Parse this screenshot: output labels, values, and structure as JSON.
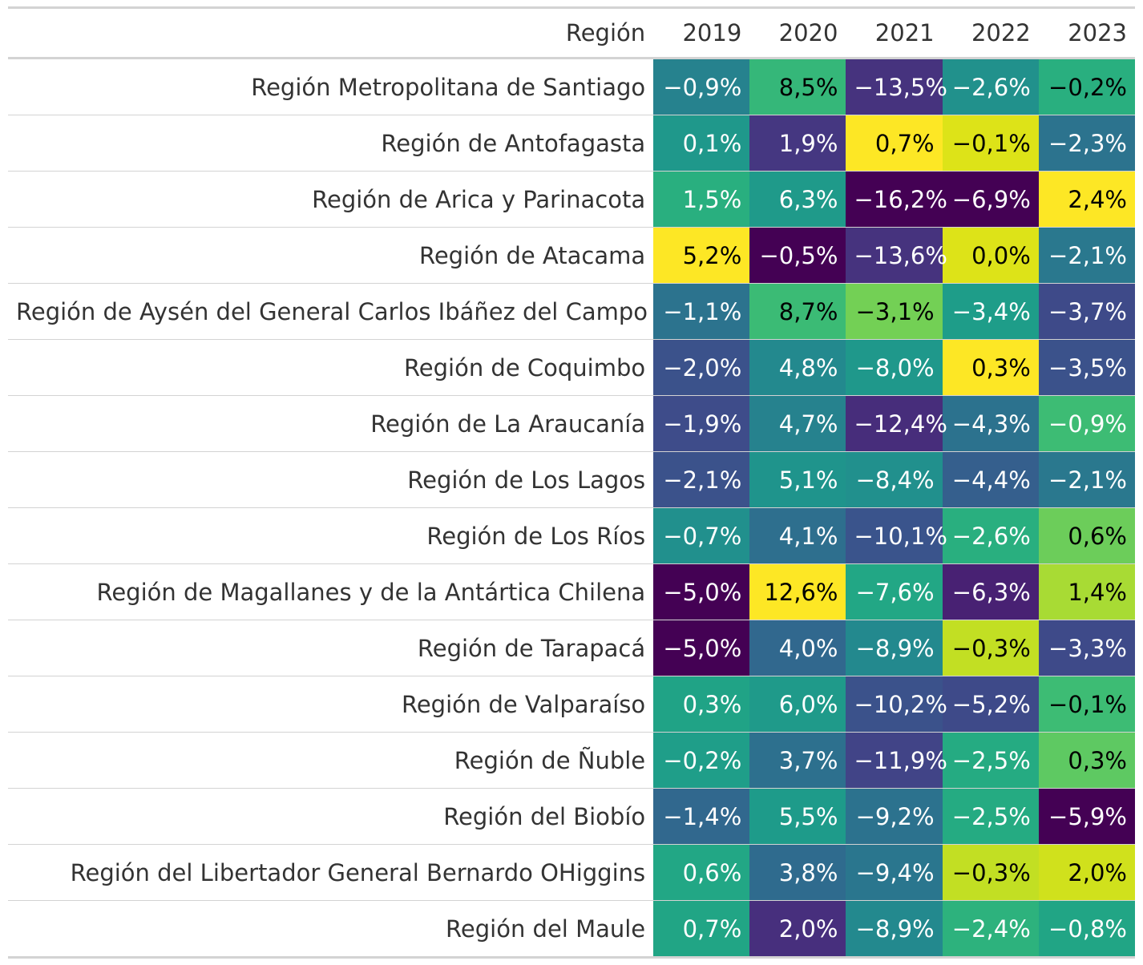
{
  "chart_data": {
    "type": "table",
    "columns": [
      "Región",
      "2019",
      "2020",
      "2021",
      "2022",
      "2023"
    ],
    "rows": [
      {
        "region": "Región Metropolitana de Santiago",
        "values": [
          -0.9,
          8.5,
          -13.5,
          -2.6,
          -0.2
        ],
        "labels": [
          "−0,9%",
          "8,5%",
          "−13,5%",
          "−2,6%",
          "−0,2%"
        ],
        "colors": [
          "#26828e",
          "#35b779",
          "#46337e",
          "#21918c",
          "#29af7f"
        ],
        "text": [
          "light",
          "dark",
          "light",
          "light",
          "dark"
        ]
      },
      {
        "region": "Región de Antofagasta",
        "values": [
          0.1,
          1.9,
          0.7,
          -0.1,
          -2.3
        ],
        "labels": [
          "0,1%",
          "1,9%",
          "0,7%",
          "−0,1%",
          "−2,3%"
        ],
        "colors": [
          "#1f988b",
          "#453781",
          "#fde725",
          "#dde318",
          "#2c738e"
        ],
        "text": [
          "light",
          "light",
          "dark",
          "dark",
          "light"
        ]
      },
      {
        "region": "Región de Arica y Parinacota",
        "values": [
          1.5,
          6.3,
          -16.2,
          -6.9,
          2.4
        ],
        "labels": [
          "1,5%",
          "6,3%",
          "−16,2%",
          "−6,9%",
          "2,4%"
        ],
        "colors": [
          "#29af7f",
          "#1f9a8a",
          "#440154",
          "#440154",
          "#fde725"
        ],
        "text": [
          "light",
          "light",
          "light",
          "light",
          "dark"
        ]
      },
      {
        "region": "Región de Atacama",
        "values": [
          5.2,
          -0.5,
          -13.6,
          0.0,
          -2.1
        ],
        "labels": [
          "5,2%",
          "−0,5%",
          "−13,6%",
          "0,0%",
          "−2,1%"
        ],
        "colors": [
          "#fde725",
          "#440154",
          "#46337e",
          "#dde318",
          "#2a788e"
        ],
        "text": [
          "dark",
          "light",
          "light",
          "dark",
          "light"
        ]
      },
      {
        "region": "Región de Aysén del General Carlos Ibáñez del Campo",
        "values": [
          -1.1,
          8.7,
          -3.1,
          -3.4,
          -3.7
        ],
        "labels": [
          "−1,1%",
          "8,7%",
          "−3,1%",
          "−3,4%",
          "−3,7%"
        ],
        "colors": [
          "#2c738e",
          "#3bbb75",
          "#73d055",
          "#1e9d89",
          "#3e4a89"
        ],
        "text": [
          "light",
          "dark",
          "dark",
          "light",
          "light"
        ]
      },
      {
        "region": "Región de Coquimbo",
        "values": [
          -2.0,
          4.8,
          -8.0,
          0.3,
          -3.5
        ],
        "labels": [
          "−2,0%",
          "4,8%",
          "−8,0%",
          "0,3%",
          "−3,5%"
        ],
        "colors": [
          "#3b528b",
          "#23898e",
          "#1f988b",
          "#fde725",
          "#3b528b"
        ],
        "text": [
          "light",
          "light",
          "light",
          "dark",
          "light"
        ]
      },
      {
        "region": "Región de La Araucanía",
        "values": [
          -1.9,
          4.7,
          -12.4,
          -4.3,
          -0.9
        ],
        "labels": [
          "−1,9%",
          "4,7%",
          "−12,4%",
          "−4,3%",
          "−0,9%"
        ],
        "colors": [
          "#3e4c8a",
          "#26828e",
          "#472d7b",
          "#2c728e",
          "#3dbc74"
        ],
        "text": [
          "light",
          "light",
          "light",
          "light",
          "light"
        ]
      },
      {
        "region": "Región de Los Lagos",
        "values": [
          -2.1,
          5.1,
          -8.4,
          -4.4,
          -2.1
        ],
        "labels": [
          "−2,1%",
          "5,1%",
          "−8,4%",
          "−4,4%",
          "−2,1%"
        ],
        "colors": [
          "#3b528b",
          "#1f948c",
          "#21908d",
          "#355f8d",
          "#2a788e"
        ],
        "text": [
          "light",
          "light",
          "light",
          "light",
          "light"
        ]
      },
      {
        "region": "Región de Los Ríos",
        "values": [
          -0.7,
          4.1,
          -10.1,
          -2.6,
          0.6
        ],
        "labels": [
          "−0,7%",
          "4,1%",
          "−10,1%",
          "−2,6%",
          "0,6%"
        ],
        "colors": [
          "#21908d",
          "#2e6f8e",
          "#3a548c",
          "#29af7f",
          "#6ccd5a"
        ],
        "text": [
          "light",
          "light",
          "light",
          "light",
          "dark"
        ]
      },
      {
        "region": "Región de Magallanes y de la Antártica Chilena",
        "values": [
          -5.0,
          12.6,
          -7.6,
          -6.3,
          1.4
        ],
        "labels": [
          "−5,0%",
          "12,6%",
          "−7,6%",
          "−6,3%",
          "1,4%"
        ],
        "colors": [
          "#440154",
          "#fde725",
          "#22a785",
          "#482173",
          "#a8db34"
        ],
        "text": [
          "light",
          "dark",
          "light",
          "light",
          "dark"
        ]
      },
      {
        "region": "Región de Tarapacá",
        "values": [
          -5.0,
          4.0,
          -8.9,
          -0.3,
          -3.3
        ],
        "labels": [
          "−5,0%",
          "4,0%",
          "−8,9%",
          "−0,3%",
          "−3,3%"
        ],
        "colors": [
          "#440154",
          "#31688e",
          "#23898e",
          "#c2df23",
          "#3e4a89"
        ],
        "text": [
          "light",
          "light",
          "light",
          "dark",
          "light"
        ]
      },
      {
        "region": "Región de Valparaíso",
        "values": [
          0.3,
          6.0,
          -10.2,
          -5.2,
          -0.1
        ],
        "labels": [
          "0,3%",
          "6,0%",
          "−10,2%",
          "−5,2%",
          "−0,1%"
        ],
        "colors": [
          "#20a386",
          "#1f9a8a",
          "#3b528b",
          "#3e4a89",
          "#3dbc74"
        ],
        "text": [
          "light",
          "light",
          "light",
          "light",
          "dark"
        ]
      },
      {
        "region": "Región de Ñuble",
        "values": [
          -0.2,
          3.7,
          -11.9,
          -2.5,
          0.3
        ],
        "labels": [
          "−0,2%",
          "3,7%",
          "−11,9%",
          "−2,5%",
          "0,3%"
        ],
        "colors": [
          "#1f9e89",
          "#2d708e",
          "#414487",
          "#25ab82",
          "#5ec962"
        ],
        "text": [
          "light",
          "light",
          "light",
          "light",
          "dark"
        ]
      },
      {
        "region": "Región del Biobío",
        "values": [
          -1.4,
          5.5,
          -9.2,
          -2.5,
          -5.9
        ],
        "labels": [
          "−1,4%",
          "5,5%",
          "−9,2%",
          "−2,5%",
          "−5,9%"
        ],
        "colors": [
          "#31688e",
          "#1e9b8a",
          "#2c728e",
          "#25ab82",
          "#440154"
        ],
        "text": [
          "light",
          "light",
          "light",
          "light",
          "light"
        ]
      },
      {
        "region": "Región del Libertador General Bernardo OHiggins",
        "values": [
          0.6,
          3.8,
          -9.4,
          -0.3,
          2.0
        ],
        "labels": [
          "0,6%",
          "3,8%",
          "−9,4%",
          "−0,3%",
          "2,0%"
        ],
        "colors": [
          "#22a785",
          "#2f6b8e",
          "#2a768e",
          "#c2df23",
          "#d0e11c"
        ],
        "text": [
          "light",
          "light",
          "light",
          "dark",
          "dark"
        ]
      },
      {
        "region": "Región del Maule",
        "values": [
          0.7,
          2.0,
          -8.9,
          -2.4,
          -0.8
        ],
        "labels": [
          "0,7%",
          "2,0%",
          "−8,9%",
          "−2,4%",
          "−0,8%"
        ],
        "colors": [
          "#21a585",
          "#472f7d",
          "#23898e",
          "#2db27d",
          "#21a585"
        ],
        "text": [
          "light",
          "light",
          "light",
          "light",
          "light"
        ]
      }
    ]
  }
}
